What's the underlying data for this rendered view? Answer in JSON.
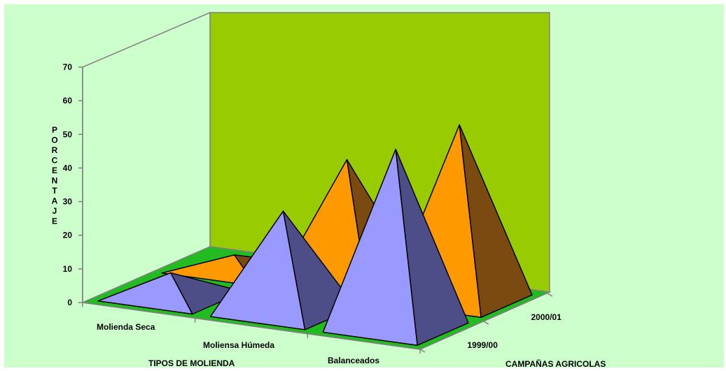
{
  "chart_data": {
    "type": "bar",
    "style": "3d-pyramid",
    "title": "",
    "categories": [
      "Molienda Seca",
      "Moliensa Húmeda",
      "Balanceados"
    ],
    "xlabel": "TIPOS DE MOLIENDA",
    "ylabel": "PORCENTAJE",
    "zlabel": "CAMPAÑAS AGRICOLAS",
    "yticks": [
      "0",
      "10",
      "20",
      "30",
      "40",
      "50",
      "60",
      "70"
    ],
    "ylim": [
      0,
      70
    ],
    "grid": false,
    "legend": "none",
    "series": [
      {
        "name": "1999/00",
        "color": "#9999ff",
        "values": [
          7,
          30,
          53
        ]
      },
      {
        "name": "2000/01",
        "color": "#ff9900",
        "values": [
          4,
          37,
          52
        ]
      }
    ],
    "colors": {
      "background": "#ccffcc",
      "back_wall": "#99cc00",
      "floor": "#22bb22",
      "series_1999_00_shade": "#4d4d88",
      "series_2000_01_shade": "#7a4a10"
    }
  }
}
